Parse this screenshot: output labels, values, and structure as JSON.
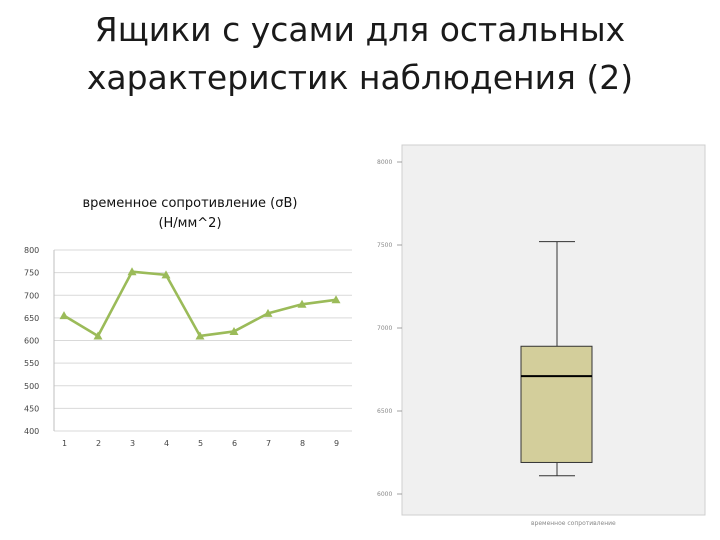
{
  "slide": {
    "title_line1": "Ящики с усами для остальных",
    "title_line2": "характеристик наблюдения (2)"
  },
  "chart_data": [
    {
      "type": "line",
      "title_line1": "временное сопротивление (σВ)",
      "title_line2": "(Н/мм^2)",
      "categories": [
        "1",
        "2",
        "3",
        "4",
        "5",
        "6",
        "7",
        "8",
        "9"
      ],
      "series": [
        {
          "values": [
            655,
            610,
            752,
            745,
            610,
            620,
            660,
            680,
            690
          ]
        }
      ],
      "ylim": [
        400,
        800
      ],
      "yticks": [
        "800",
        "750",
        "700",
        "650",
        "600",
        "550",
        "500",
        "450",
        "400"
      ],
      "grid": true,
      "line_color": "#9bbb59"
    },
    {
      "type": "box",
      "yticks": [
        "8000",
        "7500",
        "7000",
        "6500",
        "6000"
      ],
      "ylim": [
        6000,
        8000
      ],
      "whisker_low": 6110,
      "q1": 6190,
      "median": 6710,
      "q3": 6890,
      "whisker_high": 7520,
      "xlabel": "временное сопротивление",
      "fill_color": "#d3ce9b",
      "bg_color": "#f0f0f0"
    }
  ]
}
